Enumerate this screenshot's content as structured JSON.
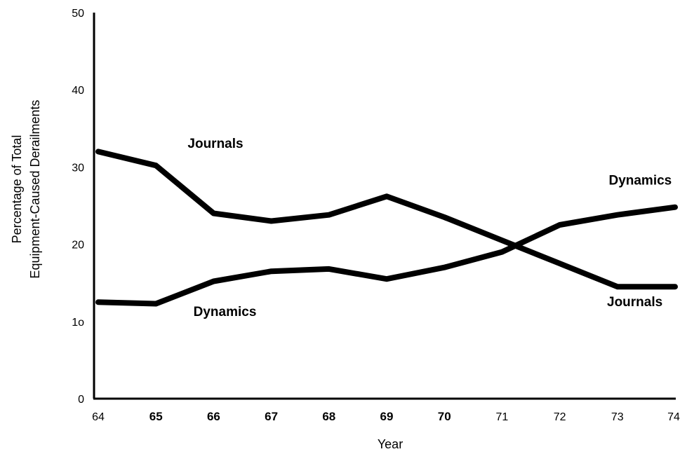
{
  "chart_data": {
    "type": "line",
    "xlabel": "Year",
    "ylabel_lines": [
      "Percentage of Total",
      "Equipment-Caused Derailments"
    ],
    "ylim": [
      0,
      50
    ],
    "y_ticks": [
      "0",
      "1o",
      "20",
      "30",
      "40",
      "50"
    ],
    "x_ticks": [
      {
        "label": "64",
        "value": 64,
        "bold": false
      },
      {
        "label": "65",
        "value": 65,
        "bold": true
      },
      {
        "label": "66",
        "value": 66,
        "bold": true
      },
      {
        "label": "67",
        "value": 67,
        "bold": true
      },
      {
        "label": "68",
        "value": 68,
        "bold": true
      },
      {
        "label": "69",
        "value": 69,
        "bold": true
      },
      {
        "label": "70",
        "value": 70,
        "bold": true
      },
      {
        "label": "71",
        "value": 71,
        "bold": false
      },
      {
        "label": "72",
        "value": 72,
        "bold": false
      },
      {
        "label": "73",
        "value": 73,
        "bold": false
      },
      {
        "label": "74",
        "value": 74,
        "bold": false
      }
    ],
    "series": [
      {
        "name": "Journals",
        "x": [
          64,
          65,
          66,
          67,
          68,
          69,
          70,
          71,
          72,
          73,
          74
        ],
        "values": [
          32,
          30.2,
          24,
          23,
          23.8,
          26.2,
          23.5,
          20.5,
          17.5,
          14.5,
          14.5
        ]
      },
      {
        "name": "Dynamics",
        "x": [
          64,
          65,
          66,
          67,
          68,
          69,
          70,
          71,
          72,
          73,
          74
        ],
        "values": [
          12.5,
          12.3,
          15.2,
          16.5,
          16.8,
          15.5,
          17,
          19,
          22.5,
          23.8,
          24.8
        ]
      }
    ],
    "annotations": [
      {
        "text": "Journals",
        "x": 65.55,
        "y": 32.5
      },
      {
        "text": "Dynamics",
        "x": 65.65,
        "y": 10.7
      },
      {
        "text": "Dynamics",
        "x": 72.85,
        "y": 27.7
      },
      {
        "text": "Journals",
        "x": 72.82,
        "y": 12.0
      }
    ],
    "grid": false,
    "legend": "none"
  }
}
